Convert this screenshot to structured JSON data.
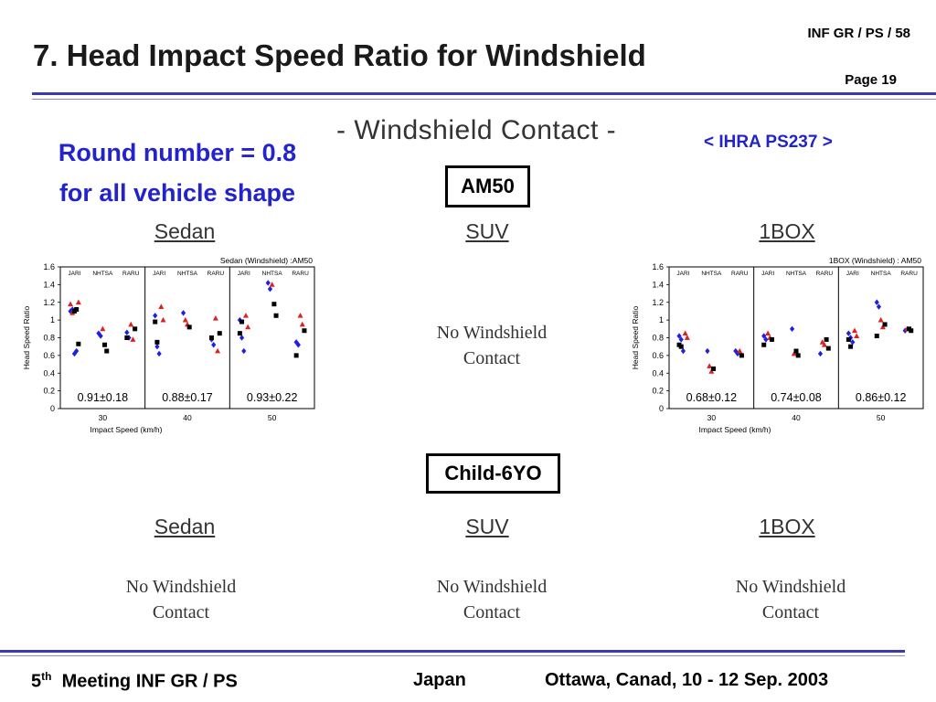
{
  "header": {
    "title": "7. Head Impact Speed Ratio for Windshield",
    "doc_id": "INF GR / PS / 58",
    "page": "Page 19"
  },
  "note": {
    "line1": "Round number = 0.8",
    "line2": "for all vehicle shape"
  },
  "reference": "< IHRA PS237 >",
  "section_title": "- Windshield Contact -",
  "groups": {
    "am50": {
      "label": "AM50",
      "sedan_label": "Sedan",
      "suv_label": "SUV",
      "box_label": "1BOX",
      "suv_text1": "No Windshield",
      "suv_text2": "Contact"
    },
    "child": {
      "label": "Child-6YO",
      "sedan_label": "Sedan",
      "suv_label": "SUV",
      "box_label": "1BOX",
      "text1": "No Windshield",
      "text2": "Contact"
    }
  },
  "chart_data": [
    {
      "type": "scatter",
      "title": "Sedan (Windshield) :AM50",
      "xlabel": "Impact Speed (km/h)",
      "ylabel": "Head Speed Ratio",
      "ylim": [
        0,
        1.6
      ],
      "yticks": [
        "0",
        "0.2",
        "0.4",
        "0.6",
        "0.8",
        "1",
        "1.2",
        "1.4",
        "1.6"
      ],
      "panels": [
        {
          "speed": "30",
          "summary": "0.91±0.18",
          "groups": [
            "JARI",
            "NHTSA",
            "RARU"
          ],
          "points": {
            "JARI": [
              [
                0,
                1.1,
                "b"
              ],
              [
                0,
                1.12,
                "b"
              ],
              [
                0,
                0.62,
                "b"
              ],
              [
                0,
                0.65,
                "b"
              ],
              [
                0,
                1.2,
                "r"
              ],
              [
                0,
                1.18,
                "r"
              ],
              [
                0,
                1.08,
                "r"
              ],
              [
                0,
                1.1,
                "k"
              ],
              [
                0,
                1.12,
                "k"
              ],
              [
                0,
                0.73,
                "k"
              ]
            ],
            "NHTSA": [
              [
                1,
                0.85,
                "b"
              ],
              [
                1,
                0.82,
                "b"
              ],
              [
                1,
                0.9,
                "r"
              ],
              [
                1,
                0.72,
                "k"
              ],
              [
                1,
                0.65,
                "k"
              ]
            ],
            "RARU": [
              [
                2,
                0.86,
                "b"
              ],
              [
                2,
                0.8,
                "b"
              ],
              [
                2,
                0.95,
                "r"
              ],
              [
                2,
                0.78,
                "r"
              ],
              [
                2,
                0.9,
                "k"
              ],
              [
                2,
                0.8,
                "k"
              ]
            ]
          }
        },
        {
          "speed": "40",
          "summary": "0.88±0.17",
          "groups": [
            "JARI",
            "NHTSA",
            "RARU"
          ],
          "points": {
            "JARI": [
              [
                0,
                1.05,
                "b"
              ],
              [
                0,
                0.7,
                "b"
              ],
              [
                0,
                0.62,
                "b"
              ],
              [
                0,
                1.15,
                "r"
              ],
              [
                0,
                1.0,
                "r"
              ],
              [
                0,
                0.98,
                "k"
              ],
              [
                0,
                0.75,
                "k"
              ]
            ],
            "NHTSA": [
              [
                1,
                1.08,
                "b"
              ],
              [
                1,
                1.0,
                "r"
              ],
              [
                1,
                0.95,
                "r"
              ],
              [
                1,
                0.92,
                "k"
              ]
            ],
            "RARU": [
              [
                2,
                0.78,
                "b"
              ],
              [
                2,
                0.72,
                "b"
              ],
              [
                2,
                1.02,
                "r"
              ],
              [
                2,
                0.65,
                "r"
              ],
              [
                2,
                0.85,
                "k"
              ],
              [
                2,
                0.8,
                "k"
              ]
            ]
          }
        },
        {
          "speed": "50",
          "summary": "0.93±0.22",
          "groups": [
            "JARI",
            "NHTSA",
            "RARU"
          ],
          "points": {
            "JARI": [
              [
                0,
                1.0,
                "b"
              ],
              [
                0,
                0.8,
                "b"
              ],
              [
                0,
                0.65,
                "b"
              ],
              [
                0,
                1.05,
                "r"
              ],
              [
                0,
                0.92,
                "r"
              ],
              [
                0,
                0.85,
                "k"
              ],
              [
                0,
                0.98,
                "k"
              ]
            ],
            "NHTSA": [
              [
                1,
                1.42,
                "b"
              ],
              [
                1,
                1.35,
                "b"
              ],
              [
                1,
                1.4,
                "r"
              ],
              [
                1,
                1.18,
                "k"
              ],
              [
                1,
                1.05,
                "k"
              ]
            ],
            "RARU": [
              [
                2,
                0.75,
                "b"
              ],
              [
                2,
                0.72,
                "b"
              ],
              [
                2,
                1.05,
                "r"
              ],
              [
                2,
                0.95,
                "r"
              ],
              [
                2,
                0.88,
                "k"
              ],
              [
                2,
                0.6,
                "k"
              ]
            ]
          }
        }
      ]
    },
    {
      "type": "scatter",
      "title": "1BOX (Windshield) : AM50",
      "xlabel": "Impact Speed (km/h)",
      "ylabel": "Head Speed Ratio",
      "ylim": [
        0,
        1.6
      ],
      "yticks": [
        "0",
        "0.2",
        "0.4",
        "0.6",
        "0.8",
        "1",
        "1.2",
        "1.4",
        "1.6"
      ],
      "panels": [
        {
          "speed": "30",
          "summary": "0.68±0.12",
          "groups": [
            "JARI",
            "NHTSA",
            "RARU"
          ],
          "points": {
            "JARI": [
              [
                0,
                0.82,
                "b"
              ],
              [
                0,
                0.78,
                "b"
              ],
              [
                0,
                0.65,
                "b"
              ],
              [
                0,
                0.85,
                "r"
              ],
              [
                0,
                0.8,
                "r"
              ],
              [
                0,
                0.72,
                "k"
              ],
              [
                0,
                0.7,
                "k"
              ]
            ],
            "NHTSA": [
              [
                1,
                0.65,
                "b"
              ],
              [
                1,
                0.48,
                "r"
              ],
              [
                1,
                0.42,
                "r"
              ],
              [
                1,
                0.45,
                "k"
              ]
            ],
            "RARU": [
              [
                2,
                0.65,
                "b"
              ],
              [
                2,
                0.62,
                "b"
              ],
              [
                2,
                0.65,
                "r"
              ],
              [
                2,
                0.6,
                "k"
              ]
            ]
          }
        },
        {
          "speed": "40",
          "summary": "0.74±0.08",
          "groups": [
            "JARI",
            "NHTSA",
            "RARU"
          ],
          "points": {
            "JARI": [
              [
                0,
                0.82,
                "b"
              ],
              [
                0,
                0.78,
                "b"
              ],
              [
                0,
                0.85,
                "r"
              ],
              [
                0,
                0.8,
                "r"
              ],
              [
                0,
                0.78,
                "k"
              ],
              [
                0,
                0.72,
                "k"
              ]
            ],
            "NHTSA": [
              [
                1,
                0.9,
                "b"
              ],
              [
                1,
                0.62,
                "r"
              ],
              [
                1,
                0.65,
                "k"
              ],
              [
                1,
                0.6,
                "k"
              ]
            ],
            "RARU": [
              [
                2,
                0.62,
                "b"
              ],
              [
                2,
                0.75,
                "r"
              ],
              [
                2,
                0.72,
                "r"
              ],
              [
                2,
                0.78,
                "k"
              ],
              [
                2,
                0.68,
                "k"
              ]
            ]
          }
        },
        {
          "speed": "50",
          "summary": "0.86±0.12",
          "groups": [
            "JARI",
            "NHTSA",
            "RARU"
          ],
          "points": {
            "JARI": [
              [
                0,
                0.85,
                "b"
              ],
              [
                0,
                0.8,
                "b"
              ],
              [
                0,
                0.75,
                "b"
              ],
              [
                0,
                0.88,
                "r"
              ],
              [
                0,
                0.82,
                "r"
              ],
              [
                0,
                0.78,
                "k"
              ],
              [
                0,
                0.7,
                "k"
              ]
            ],
            "NHTSA": [
              [
                1,
                1.2,
                "b"
              ],
              [
                1,
                1.15,
                "b"
              ],
              [
                1,
                1.0,
                "r"
              ],
              [
                1,
                0.92,
                "r"
              ],
              [
                1,
                0.95,
                "k"
              ],
              [
                1,
                0.82,
                "k"
              ]
            ],
            "RARU": [
              [
                2,
                0.88,
                "b"
              ],
              [
                2,
                0.9,
                "r"
              ],
              [
                2,
                0.9,
                "k"
              ],
              [
                2,
                0.88,
                "k"
              ]
            ]
          }
        }
      ]
    }
  ],
  "footer": {
    "ordinal": "5",
    "ordinal_sup": "th",
    "meeting": "Meeting INF GR / PS",
    "country": "Japan",
    "place_date": "Ottawa, Canad, 10 - 12 Sep. 2003"
  },
  "colors": {
    "accent": "#2323cc",
    "rule": "#3a3ab0",
    "blue": "#1f1fe6",
    "red": "#e01f1f",
    "black": "#000000"
  }
}
